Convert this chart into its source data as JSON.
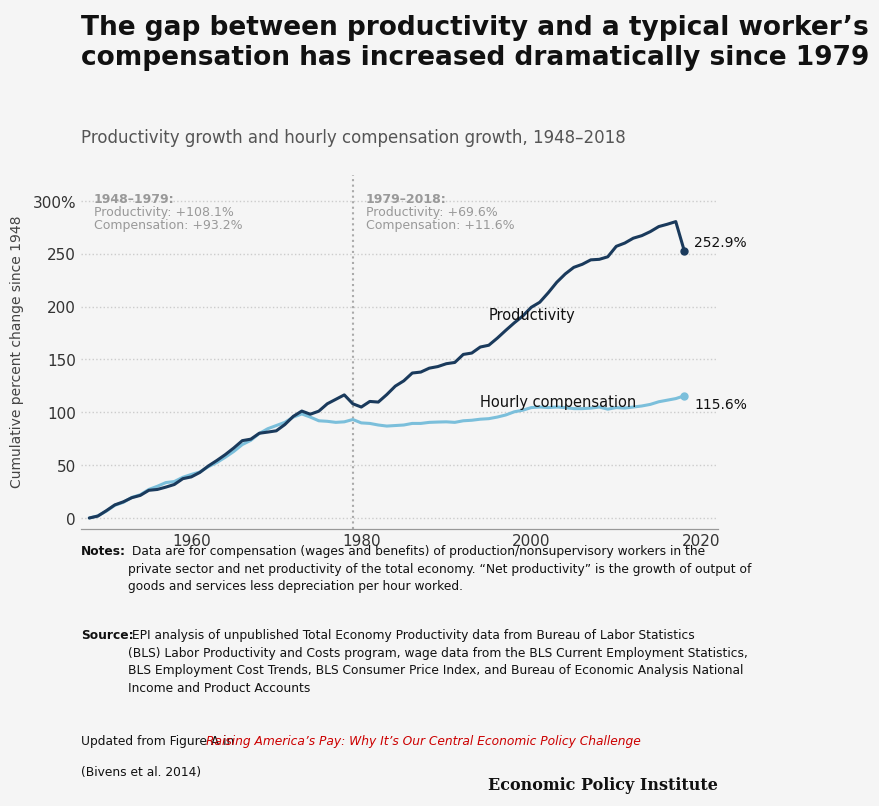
{
  "title": "The gap between productivity and a typical worker’s\ncompensation has increased dramatically since 1979",
  "subtitle": "Productivity growth and hourly compensation growth, 1948–2018",
  "title_fontsize": 19,
  "subtitle_fontsize": 12,
  "bg_color": "#f5f5f5",
  "plot_bg_color": "#f5f5f5",
  "productivity_color": "#1a3a5c",
  "compensation_color": "#7bbfdb",
  "vline_year": 1979,
  "ann1_header": "1948–1979:",
  "ann1_prod": "Productivity: +108.1%",
  "ann1_comp": "Compensation: +93.2%",
  "ann2_header": "1979–2018:",
  "ann2_prod": "Productivity: +69.6%",
  "ann2_comp": "Compensation: +11.6%",
  "end_label_prod": "252.9%",
  "end_label_comp": "115.6%",
  "prod_label": "Productivity",
  "comp_label": "Hourly compensation",
  "ylabel": "Cumulative percent change since 1948",
  "ylim": [
    -10,
    325
  ],
  "yticks": [
    0,
    50,
    100,
    150,
    200,
    250,
    300
  ],
  "ytick_labels": [
    "0",
    "50",
    "100",
    "150",
    "200",
    "250",
    "300%"
  ],
  "xlim": [
    1947,
    2022
  ],
  "xticks": [
    1960,
    1980,
    2000,
    2020
  ],
  "epi_label": "Economic Policy Institute",
  "productivity_data": {
    "years": [
      1948,
      1949,
      1950,
      1951,
      1952,
      1953,
      1954,
      1955,
      1956,
      1957,
      1958,
      1959,
      1960,
      1961,
      1962,
      1963,
      1964,
      1965,
      1966,
      1967,
      1968,
      1969,
      1970,
      1971,
      1972,
      1973,
      1974,
      1975,
      1976,
      1977,
      1978,
      1979,
      1980,
      1981,
      1982,
      1983,
      1984,
      1985,
      1986,
      1987,
      1988,
      1989,
      1990,
      1991,
      1992,
      1993,
      1994,
      1995,
      1996,
      1997,
      1998,
      1999,
      2000,
      2001,
      2002,
      2003,
      2004,
      2005,
      2006,
      2007,
      2008,
      2009,
      2010,
      2011,
      2012,
      2013,
      2014,
      2015,
      2016,
      2017,
      2018
    ],
    "values": [
      0.0,
      1.8,
      6.9,
      12.4,
      15.3,
      19.2,
      21.4,
      26.2,
      27.0,
      29.2,
      31.7,
      37.2,
      38.9,
      43.1,
      49.2,
      54.4,
      60.0,
      66.3,
      73.2,
      74.6,
      80.2,
      81.3,
      82.5,
      88.4,
      96.2,
      101.2,
      98.2,
      101.1,
      108.1,
      112.3,
      116.5,
      108.1,
      105.0,
      110.3,
      109.7,
      116.8,
      124.8,
      129.8,
      137.2,
      138.1,
      141.8,
      143.3,
      146.0,
      147.2,
      154.8,
      156.1,
      161.8,
      163.5,
      170.2,
      177.6,
      184.7,
      191.2,
      199.4,
      204.2,
      213.2,
      223.1,
      231.0,
      237.2,
      240.1,
      244.3,
      244.8,
      247.2,
      257.1,
      260.2,
      264.8,
      267.2,
      271.0,
      275.8,
      278.0,
      280.5,
      252.9
    ]
  },
  "compensation_data": {
    "years": [
      1948,
      1949,
      1950,
      1951,
      1952,
      1953,
      1954,
      1955,
      1956,
      1957,
      1958,
      1959,
      1960,
      1961,
      1962,
      1963,
      1964,
      1965,
      1966,
      1967,
      1968,
      1969,
      1970,
      1971,
      1972,
      1973,
      1974,
      1975,
      1976,
      1977,
      1978,
      1979,
      1980,
      1981,
      1982,
      1983,
      1984,
      1985,
      1986,
      1987,
      1988,
      1989,
      1990,
      1991,
      1992,
      1993,
      1994,
      1995,
      1996,
      1997,
      1998,
      1999,
      2000,
      2001,
      2002,
      2003,
      2004,
      2005,
      2006,
      2007,
      2008,
      2009,
      2010,
      2011,
      2012,
      2013,
      2014,
      2015,
      2016,
      2017,
      2018
    ],
    "values": [
      0.0,
      2.0,
      6.5,
      12.0,
      14.8,
      19.5,
      22.0,
      27.0,
      30.0,
      33.5,
      34.5,
      38.5,
      41.2,
      43.5,
      48.5,
      52.5,
      57.5,
      63.0,
      69.5,
      73.5,
      80.0,
      84.5,
      87.5,
      90.5,
      95.5,
      98.5,
      95.5,
      92.0,
      91.5,
      90.5,
      91.0,
      93.2,
      90.0,
      89.5,
      88.0,
      87.0,
      87.5,
      88.0,
      89.5,
      89.5,
      90.5,
      90.8,
      91.0,
      90.5,
      92.0,
      92.5,
      93.5,
      94.0,
      95.5,
      97.5,
      100.5,
      102.0,
      104.5,
      105.0,
      104.5,
      105.0,
      104.5,
      103.5,
      103.5,
      104.0,
      105.0,
      103.0,
      104.5,
      104.0,
      105.0,
      106.0,
      107.5,
      110.0,
      111.5,
      113.0,
      115.6
    ]
  }
}
